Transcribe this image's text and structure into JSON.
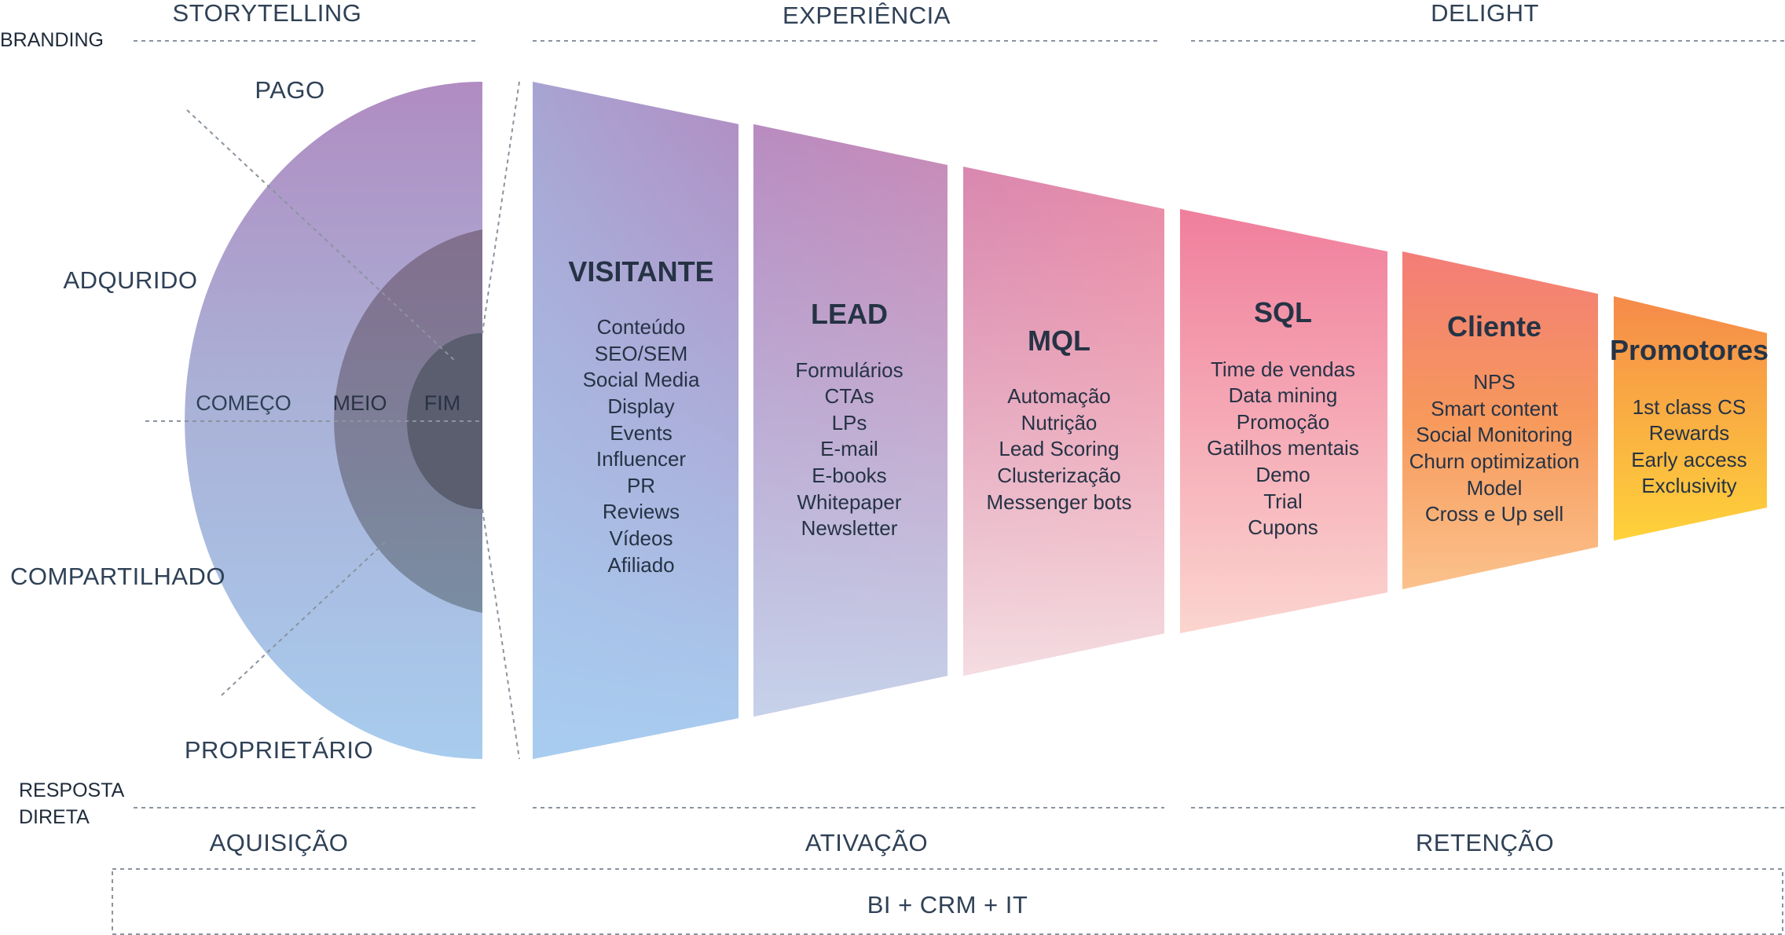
{
  "top_headers": {
    "storytelling": "STORYTELLING",
    "experiencia": "EXPERIÊNCIA",
    "delight": "DELIGHT"
  },
  "side_labels": {
    "branding": "BRANDING",
    "resposta_line1": "RESPOSTA",
    "resposta_line2": "DIRETA"
  },
  "media_types": {
    "pago": "PAGO",
    "adqurido": "ADQURIDO",
    "compartilhado": "COMPARTILHADO",
    "proprietario": "PROPRIETÁRIO"
  },
  "rings": {
    "comeco": "COMEÇO",
    "meio": "MEIO",
    "fim": "FIM"
  },
  "stages": [
    {
      "title": "VISITANTE",
      "items": [
        "Conteúdo",
        "SEO/SEM",
        "Social Media",
        "Display",
        "Events",
        "Influencer",
        "PR",
        "Reviews",
        "Vídeos",
        "Afiliado"
      ]
    },
    {
      "title": "LEAD",
      "items": [
        "Formulários",
        "CTAs",
        "LPs",
        "E-mail",
        "E-books",
        "Whitepaper",
        "Newsletter"
      ]
    },
    {
      "title": "MQL",
      "items": [
        "Automação",
        "Nutrição",
        "Lead Scoring",
        "Clusterização",
        "Messenger bots"
      ]
    },
    {
      "title": "SQL",
      "items": [
        "Time de vendas",
        "Data mining",
        "Promoção",
        "Gatilhos mentais",
        "Demo",
        "Trial",
        "Cupons"
      ]
    },
    {
      "title": "Cliente",
      "items": [
        "NPS",
        "Smart content",
        "Social Monitoring",
        "Churn optimization",
        "Model",
        "Cross e Up sell"
      ]
    },
    {
      "title": "Promotores",
      "items": [
        "1st class CS",
        "Rewards",
        "Early access",
        "Exclusivity"
      ]
    }
  ],
  "bottom_headers": {
    "aquisicao": "AQUISIÇÃO",
    "ativacao": "ATIVAÇÃO",
    "retencao": "RETENÇÃO"
  },
  "footer": {
    "bi_crm_it": "BI + CRM + IT"
  },
  "colors": {
    "purple": "#a88cc2",
    "pink": "#ec7f9f",
    "orange": "#f5884f",
    "yellow": "#fec93b",
    "light_blue": "#a8c9ec",
    "dark_core": "#5a5e6e"
  }
}
